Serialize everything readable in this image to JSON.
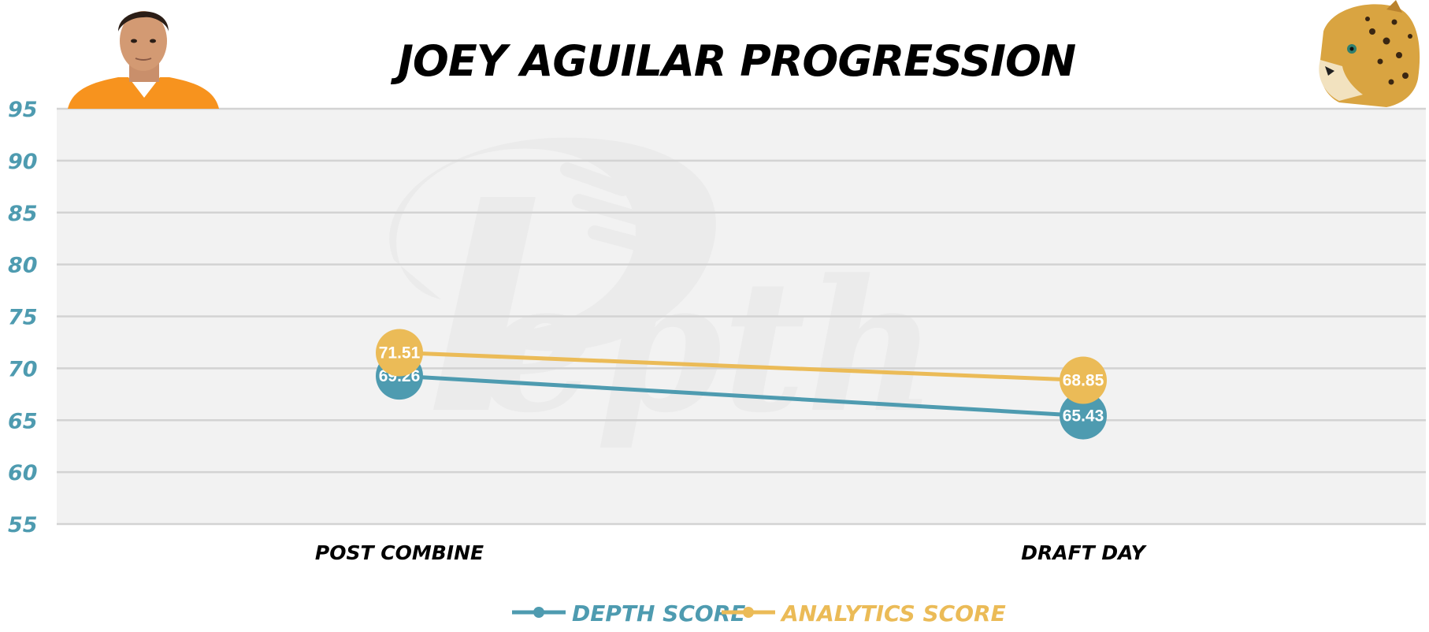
{
  "colors": {
    "depth": "#4e9bb0",
    "analytics": "#ebbb57",
    "plot_bg": "#f2f2f2",
    "grid": "#d3d3d3",
    "tick": "#4e9bb0",
    "title": "#000000",
    "value_label": "#ffffff",
    "jersey": "#f7931e"
  },
  "icons": {
    "player": "player-headshot-icon",
    "team": "jaguar-logo-icon",
    "watermark": "depth-watermark-logo"
  },
  "chart_data": {
    "type": "line",
    "title": "JOEY AGUILAR PROGRESSION",
    "xlabel": "",
    "ylabel": "",
    "categories": [
      "POST COMBINE",
      "DRAFT DAY"
    ],
    "ylim": [
      55,
      95
    ],
    "yticks": [
      95,
      90,
      85,
      80,
      75,
      70,
      65,
      60,
      55
    ],
    "grid": true,
    "legend_position": "bottom-center",
    "series": [
      {
        "name": "DEPTH SCORE",
        "values": [
          69.26,
          65.43
        ],
        "labels": [
          "69.26",
          "65.43"
        ],
        "color_key": "depth"
      },
      {
        "name": "ANALYTICS SCORE",
        "values": [
          71.51,
          68.85
        ],
        "labels": [
          "71.51",
          "68.85"
        ],
        "color_key": "analytics"
      }
    ]
  }
}
